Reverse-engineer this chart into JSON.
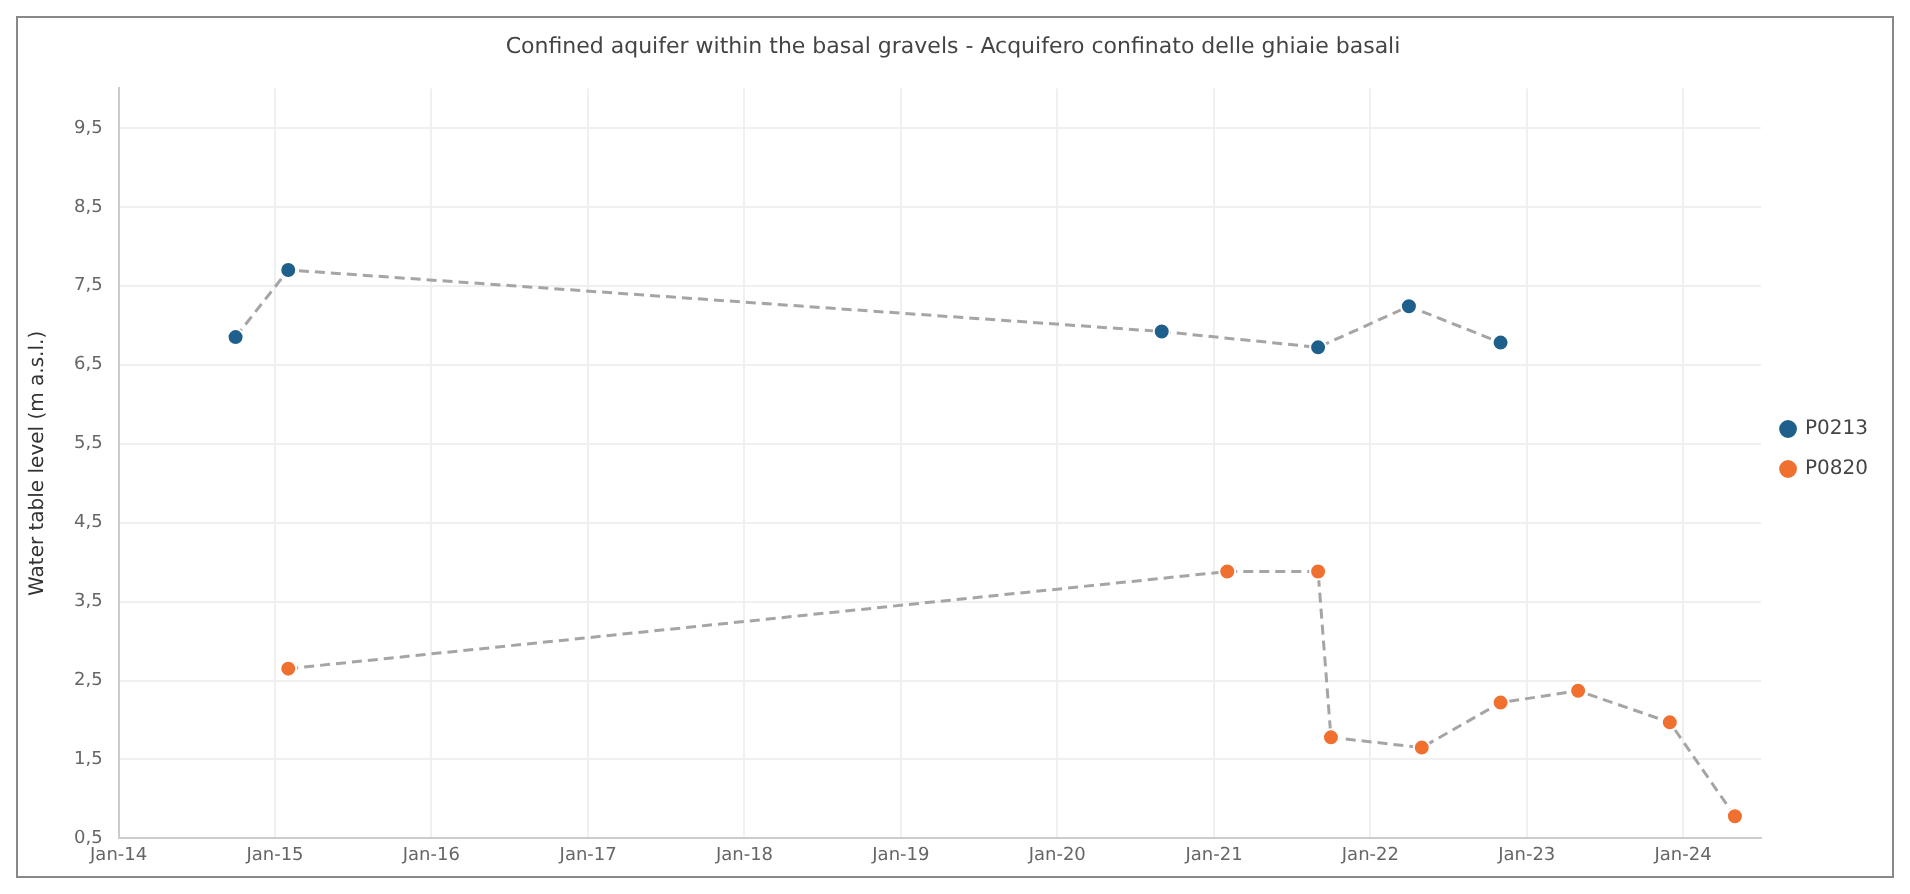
{
  "chart_data": {
    "type": "line",
    "title": "Confined aquifer within the basal gravels - Acquifero confinato delle ghiaie basali",
    "ylabel": "Water table level (m a.s.l.)",
    "series": [
      {
        "name": "P0213",
        "color": "#1f5f8b",
        "x": [
          "2014-10",
          "2015-02",
          "2020-09",
          "2021-09",
          "2022-04",
          "2022-11"
        ],
        "values": [
          6.85,
          7.7,
          6.92,
          6.72,
          7.24,
          6.78
        ]
      },
      {
        "name": "P0820",
        "color": "#f07030",
        "x": [
          "2015-02",
          "2021-02",
          "2021-09",
          "2021-10",
          "2022-05",
          "2022-11",
          "2023-05",
          "2023-12",
          "2024-05"
        ],
        "values": [
          2.65,
          3.88,
          3.88,
          1.78,
          1.65,
          2.22,
          2.37,
          1.97,
          0.78
        ]
      }
    ],
    "xlim": [
      "2014-01",
      "2024-07"
    ],
    "xticks": [
      {
        "value": "2014-01",
        "label": "Jan-14"
      },
      {
        "value": "2015-01",
        "label": "Jan-15"
      },
      {
        "value": "2016-01",
        "label": "Jan-16"
      },
      {
        "value": "2017-01",
        "label": "Jan-17"
      },
      {
        "value": "2018-01",
        "label": "Jan-18"
      },
      {
        "value": "2019-01",
        "label": "Jan-19"
      },
      {
        "value": "2020-01",
        "label": "Jan-20"
      },
      {
        "value": "2021-01",
        "label": "Jan-21"
      },
      {
        "value": "2022-01",
        "label": "Jan-22"
      },
      {
        "value": "2023-01",
        "label": "Jan-23"
      },
      {
        "value": "2024-01",
        "label": "Jan-24"
      }
    ],
    "ylim": [
      0.5,
      10
    ],
    "yticks": [
      {
        "value": 0.5,
        "label": "0,5"
      },
      {
        "value": 1.5,
        "label": "1,5"
      },
      {
        "value": 2.5,
        "label": "2,5"
      },
      {
        "value": 3.5,
        "label": "3,5"
      },
      {
        "value": 4.5,
        "label": "4,5"
      },
      {
        "value": 5.5,
        "label": "5,5"
      },
      {
        "value": 6.5,
        "label": "6,5"
      },
      {
        "value": 7.5,
        "label": "7,5"
      },
      {
        "value": 8.5,
        "label": "8,5"
      },
      {
        "value": 9.5,
        "label": "9,5"
      }
    ],
    "grid": true,
    "legend": "right",
    "marker": "circle",
    "line_style": "dashed"
  }
}
